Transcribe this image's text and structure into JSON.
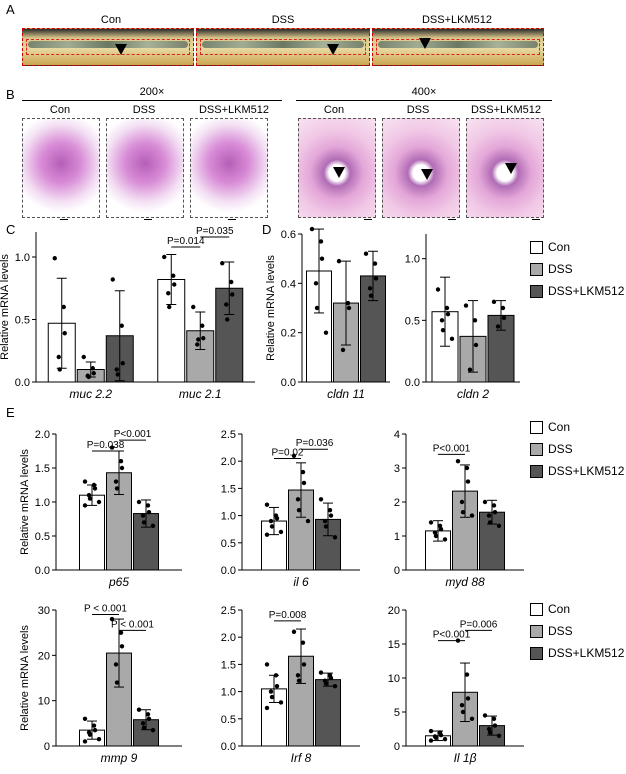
{
  "figure": {
    "panel_letters": [
      "A",
      "B",
      "C",
      "D",
      "E"
    ],
    "colors": {
      "con": "#ffffff",
      "dss": "#a9a9a9",
      "lkm": "#555555"
    },
    "panelA": {
      "labels": [
        "Con",
        "DSS",
        "DSS+LKM512"
      ]
    },
    "panelB": {
      "mag1": "200×",
      "mag2": "400×",
      "labels1": [
        "Con",
        "DSS",
        "DSS+LKM512"
      ],
      "labels2": [
        "Con",
        "DSS",
        "DSS+LKM512"
      ]
    },
    "legend_top": [
      "Con",
      "DSS",
      "DSS+LKM512"
    ],
    "legend_bottom": [
      "Con",
      "DSS",
      "DSS+LKM512"
    ]
  },
  "chart_data": [
    {
      "id": "C",
      "type": "bar",
      "ylabel": "Relative mRNA levels",
      "ylim": [
        0,
        1.2
      ],
      "yticks": [
        "0.0",
        "0.5",
        "1.0"
      ],
      "yticksv": [
        0,
        0.5,
        1.0
      ],
      "categories": [
        "muc 2.2",
        "muc 2.1"
      ],
      "series": [
        {
          "name": "Con",
          "values": [
            0.47,
            0.82
          ],
          "err": [
            0.36,
            0.2
          ]
        },
        {
          "name": "DSS",
          "values": [
            0.1,
            0.41
          ],
          "err": [
            0.06,
            0.15
          ]
        },
        {
          "name": "DSS+LKM512",
          "values": [
            0.37,
            0.75
          ],
          "err": [
            0.36,
            0.21
          ]
        }
      ],
      "points": [
        [
          [
            0.99,
            0.6,
            0.39,
            0.2,
            0.1
          ],
          [
            1.0,
            0.85,
            0.78,
            0.71,
            0.6
          ]
        ],
        [
          [
            0.2,
            0.11,
            0.07,
            0.05,
            0.04
          ],
          [
            0.6,
            0.45,
            0.35,
            0.3,
            0.34
          ]
        ],
        [
          [
            0.82,
            0.45,
            0.15,
            0.1,
            0.06
          ],
          [
            0.95,
            0.8,
            0.7,
            0.62,
            0.5
          ]
        ]
      ],
      "annotations": [
        {
          "text": "P=0.014",
          "cat": 1,
          "from": 0,
          "to": 1,
          "y": 1.08
        },
        {
          "text": "P=0.035",
          "cat": 1,
          "from": 1,
          "to": 2,
          "y": 1.16
        }
      ]
    },
    {
      "id": "D1",
      "type": "bar",
      "ylabel": "Relative mRNA levels",
      "ylim": [
        0,
        0.6
      ],
      "yticks": [
        "0.0",
        "0.2",
        "0.4",
        "0.6"
      ],
      "yticksv": [
        0,
        0.2,
        0.4,
        0.6
      ],
      "categories": [
        "cldn 11"
      ],
      "series": [
        {
          "name": "Con",
          "values": [
            0.45
          ],
          "err": [
            0.17
          ]
        },
        {
          "name": "DSS",
          "values": [
            0.32
          ],
          "err": [
            0.17
          ]
        },
        {
          "name": "DSS+LKM512",
          "values": [
            0.43
          ],
          "err": [
            0.1
          ]
        }
      ],
      "points": [
        [
          [
            0.62,
            0.57,
            0.5,
            0.4,
            0.3,
            0.2
          ]
        ],
        [
          [
            0.49,
            0.32,
            0.3,
            0.13
          ]
        ],
        [
          [
            0.52,
            0.48,
            0.42,
            0.38,
            0.35
          ]
        ]
      ],
      "annotations": []
    },
    {
      "id": "D2",
      "type": "bar",
      "ylabel": "",
      "ylim": [
        0,
        1.2
      ],
      "yticks": [
        "0.0",
        "0.5",
        "1.0"
      ],
      "yticksv": [
        0,
        0.5,
        1.0
      ],
      "categories": [
        "cldn 2"
      ],
      "series": [
        {
          "name": "Con",
          "values": [
            0.57
          ],
          "err": [
            0.28
          ]
        },
        {
          "name": "DSS",
          "values": [
            0.37
          ],
          "err": [
            0.29
          ]
        },
        {
          "name": "DSS+LKM512",
          "values": [
            0.54
          ],
          "err": [
            0.12
          ]
        }
      ],
      "points": [
        [
          [
            0.75,
            0.6,
            0.55,
            0.5,
            0.42,
            0.35
          ]
        ],
        [
          [
            0.62,
            0.5,
            0.3,
            0.1
          ]
        ],
        [
          [
            0.65,
            0.6,
            0.52,
            0.45
          ]
        ]
      ],
      "annotations": []
    },
    {
      "id": "E1",
      "type": "bar",
      "ylabel": "Relative mRNA levels",
      "ylim": [
        0,
        2.0
      ],
      "yticks": [
        "0.0",
        "0.5",
        "1.0",
        "1.5",
        "2.0"
      ],
      "yticksv": [
        0,
        0.5,
        1.0,
        1.5,
        2.0
      ],
      "categories": [
        "p65"
      ],
      "series": [
        {
          "name": "Con",
          "values": [
            1.1
          ],
          "err": [
            0.15
          ]
        },
        {
          "name": "DSS",
          "values": [
            1.43
          ],
          "err": [
            0.32
          ]
        },
        {
          "name": "DSS+LKM512",
          "values": [
            0.83
          ],
          "err": [
            0.2
          ]
        }
      ],
      "points": [
        [
          [
            1.3,
            1.25,
            1.2,
            1.1,
            1.05,
            1.0,
            0.95
          ]
        ],
        [
          [
            1.8,
            1.6,
            1.5,
            1.3,
            1.2
          ]
        ],
        [
          [
            1.0,
            0.95,
            0.85,
            0.8,
            0.7,
            0.65
          ]
        ]
      ],
      "annotations": [
        {
          "text": "P=0.038",
          "cat": 0,
          "from": 0,
          "to": 1,
          "y": 1.75
        },
        {
          "text": "P<0.001",
          "cat": 0,
          "from": 1,
          "to": 2,
          "y": 1.91
        }
      ]
    },
    {
      "id": "E2",
      "type": "bar",
      "ylabel": "",
      "ylim": [
        0,
        2.5
      ],
      "yticks": [
        "0.0",
        "0.5",
        "1.0",
        "1.5",
        "2.0",
        "2.5"
      ],
      "yticksv": [
        0,
        0.5,
        1.0,
        1.5,
        2.0,
        2.5
      ],
      "categories": [
        "il 6"
      ],
      "series": [
        {
          "name": "Con",
          "values": [
            0.9
          ],
          "err": [
            0.25
          ]
        },
        {
          "name": "DSS",
          "values": [
            1.47
          ],
          "err": [
            0.5
          ]
        },
        {
          "name": "DSS+LKM512",
          "values": [
            0.93
          ],
          "err": [
            0.3
          ]
        }
      ],
      "points": [
        [
          [
            1.2,
            1.0,
            0.95,
            0.9,
            0.8,
            0.7,
            0.65
          ]
        ],
        [
          [
            2.1,
            1.8,
            1.6,
            1.3,
            1.1,
            0.9
          ]
        ],
        [
          [
            1.3,
            1.1,
            1.0,
            0.9,
            0.8,
            0.6
          ]
        ]
      ],
      "annotations": [
        {
          "text": "P=0.02",
          "cat": 0,
          "from": 0,
          "to": 1,
          "y": 2.05
        },
        {
          "text": "P=0.036",
          "cat": 0,
          "from": 1,
          "to": 2,
          "y": 2.22
        }
      ]
    },
    {
      "id": "E3",
      "type": "bar",
      "ylabel": "",
      "ylim": [
        0,
        4
      ],
      "yticks": [
        "0",
        "1",
        "2",
        "3",
        "4"
      ],
      "yticksv": [
        0,
        1,
        2,
        3,
        4
      ],
      "categories": [
        "myd 88"
      ],
      "series": [
        {
          "name": "Con",
          "values": [
            1.15
          ],
          "err": [
            0.3
          ]
        },
        {
          "name": "DSS",
          "values": [
            2.32
          ],
          "err": [
            0.77
          ]
        },
        {
          "name": "DSS+LKM512",
          "values": [
            1.7
          ],
          "err": [
            0.35
          ]
        }
      ],
      "points": [
        [
          [
            1.4,
            1.3,
            1.2,
            1.1,
            1.0,
            0.9
          ]
        ],
        [
          [
            3.2,
            3.0,
            2.6,
            2.0,
            1.7,
            1.6
          ]
        ],
        [
          [
            2.0,
            1.9,
            1.7,
            1.6,
            1.4,
            1.3
          ]
        ]
      ],
      "annotations": [
        {
          "text": "P<0.001",
          "cat": 0,
          "from": 0,
          "to": 1,
          "y": 3.4
        }
      ]
    },
    {
      "id": "E4",
      "type": "bar",
      "ylabel": "Relative mRNA levels",
      "ylim": [
        0,
        30
      ],
      "yticks": [
        "0",
        "10",
        "20",
        "30"
      ],
      "yticksv": [
        0,
        10,
        20,
        30
      ],
      "categories": [
        "mmp 9"
      ],
      "series": [
        {
          "name": "Con",
          "values": [
            3.5
          ],
          "err": [
            2.0
          ]
        },
        {
          "name": "DSS",
          "values": [
            20.5
          ],
          "err": [
            7.5
          ]
        },
        {
          "name": "DSS+LKM512",
          "values": [
            5.8
          ],
          "err": [
            2.2
          ]
        }
      ],
      "points": [
        [
          [
            6.0,
            4.5,
            3.5,
            3.0,
            2.5,
            1.5,
            1.0
          ]
        ],
        [
          [
            28.0,
            25.0,
            22.0,
            18.0,
            14.0
          ]
        ],
        [
          [
            8.0,
            7.0,
            6.0,
            5.0,
            4.0,
            3.5
          ]
        ]
      ],
      "annotations": [
        {
          "text": "P < 0.001",
          "cat": 0,
          "from": 0,
          "to": 1,
          "y": 29.0
        },
        {
          "text": "P < 0.001",
          "cat": 0,
          "from": 1,
          "to": 2,
          "y": 25.5
        }
      ]
    },
    {
      "id": "E5",
      "type": "bar",
      "ylabel": "",
      "ylim": [
        0,
        2.5
      ],
      "yticks": [
        "0.0",
        "0.5",
        "1.0",
        "1.5",
        "2.0",
        "2.5"
      ],
      "yticksv": [
        0,
        0.5,
        1.0,
        1.5,
        2.0,
        2.5
      ],
      "categories": [
        "Irf 8"
      ],
      "series": [
        {
          "name": "Con",
          "values": [
            1.05
          ],
          "err": [
            0.25
          ]
        },
        {
          "name": "DSS",
          "values": [
            1.65
          ],
          "err": [
            0.5
          ]
        },
        {
          "name": "DSS+LKM512",
          "values": [
            1.22
          ],
          "err": [
            0.12
          ]
        }
      ],
      "points": [
        [
          [
            1.5,
            1.3,
            1.1,
            1.0,
            0.9,
            0.8,
            0.7
          ]
        ],
        [
          [
            2.1,
            1.9,
            1.5,
            1.3,
            1.2
          ]
        ],
        [
          [
            1.35,
            1.3,
            1.25,
            1.2,
            1.15,
            1.1
          ]
        ]
      ],
      "annotations": [
        {
          "text": "P=0.008",
          "cat": 0,
          "from": 0,
          "to": 1,
          "y": 2.3
        }
      ]
    },
    {
      "id": "E6",
      "type": "bar",
      "ylabel": "",
      "ylim": [
        0,
        20
      ],
      "yticks": [
        "0",
        "5",
        "10",
        "15",
        "20"
      ],
      "yticksv": [
        0,
        5,
        10,
        15,
        20
      ],
      "categories": [
        "Il 1β"
      ],
      "series": [
        {
          "name": "Con",
          "values": [
            1.5
          ],
          "err": [
            0.7
          ]
        },
        {
          "name": "DSS",
          "values": [
            7.9
          ],
          "err": [
            4.3
          ]
        },
        {
          "name": "DSS+LKM512",
          "values": [
            3.0
          ],
          "err": [
            1.4
          ]
        }
      ],
      "points": [
        [
          [
            2.2,
            2.0,
            1.6,
            1.4,
            1.2,
            1.0,
            0.8
          ]
        ],
        [
          [
            15.5,
            10.5,
            7.0,
            6.0,
            5.0,
            4.0
          ]
        ],
        [
          [
            4.5,
            4.0,
            3.0,
            2.5,
            2.0,
            1.5
          ]
        ]
      ],
      "annotations": [
        {
          "text": "P<0.001",
          "cat": 0,
          "from": 0,
          "to": 1,
          "y": 15.5
        },
        {
          "text": "P=0.006",
          "cat": 0,
          "from": 1,
          "to": 2,
          "y": 17.0
        }
      ]
    }
  ]
}
